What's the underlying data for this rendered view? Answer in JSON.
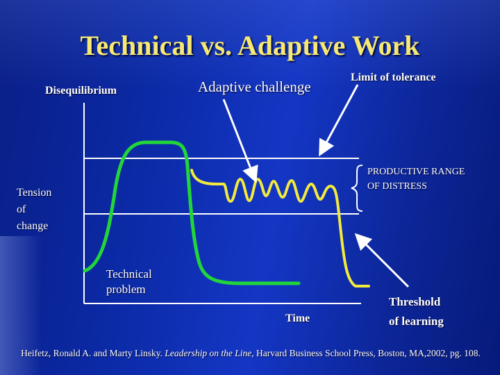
{
  "slide": {
    "title": "Technical vs. Adaptive Work",
    "colors": {
      "title": "#f6e873",
      "technical_curve": "#22d63a",
      "adaptive_curve": "#f2ea3c",
      "axis": "#ffffff",
      "text": "#ffffff"
    }
  },
  "labels": {
    "y_axis_top": "Disequilibrium",
    "adaptive_challenge": "Adaptive challenge",
    "limit_of_tolerance": "Limit of tolerance",
    "productive_range_line1": "PRODUCTIVE RANGE",
    "productive_range_line2": "OF DISTRESS",
    "tension_line1": "Tension",
    "tension_line2": "of",
    "tension_line3": "change",
    "technical_line1": "Technical",
    "technical_line2": "problem",
    "x_axis": "Time",
    "threshold_line1": "Threshold",
    "threshold_line2": "of learning"
  },
  "citation": {
    "authors": "Heifetz, Ronald A. and Marty Linsky.",
    "book": "Leadership on the Line",
    "publisher": ", Harvard Business School Press, Boston, MA,2002, pg. 108."
  }
}
